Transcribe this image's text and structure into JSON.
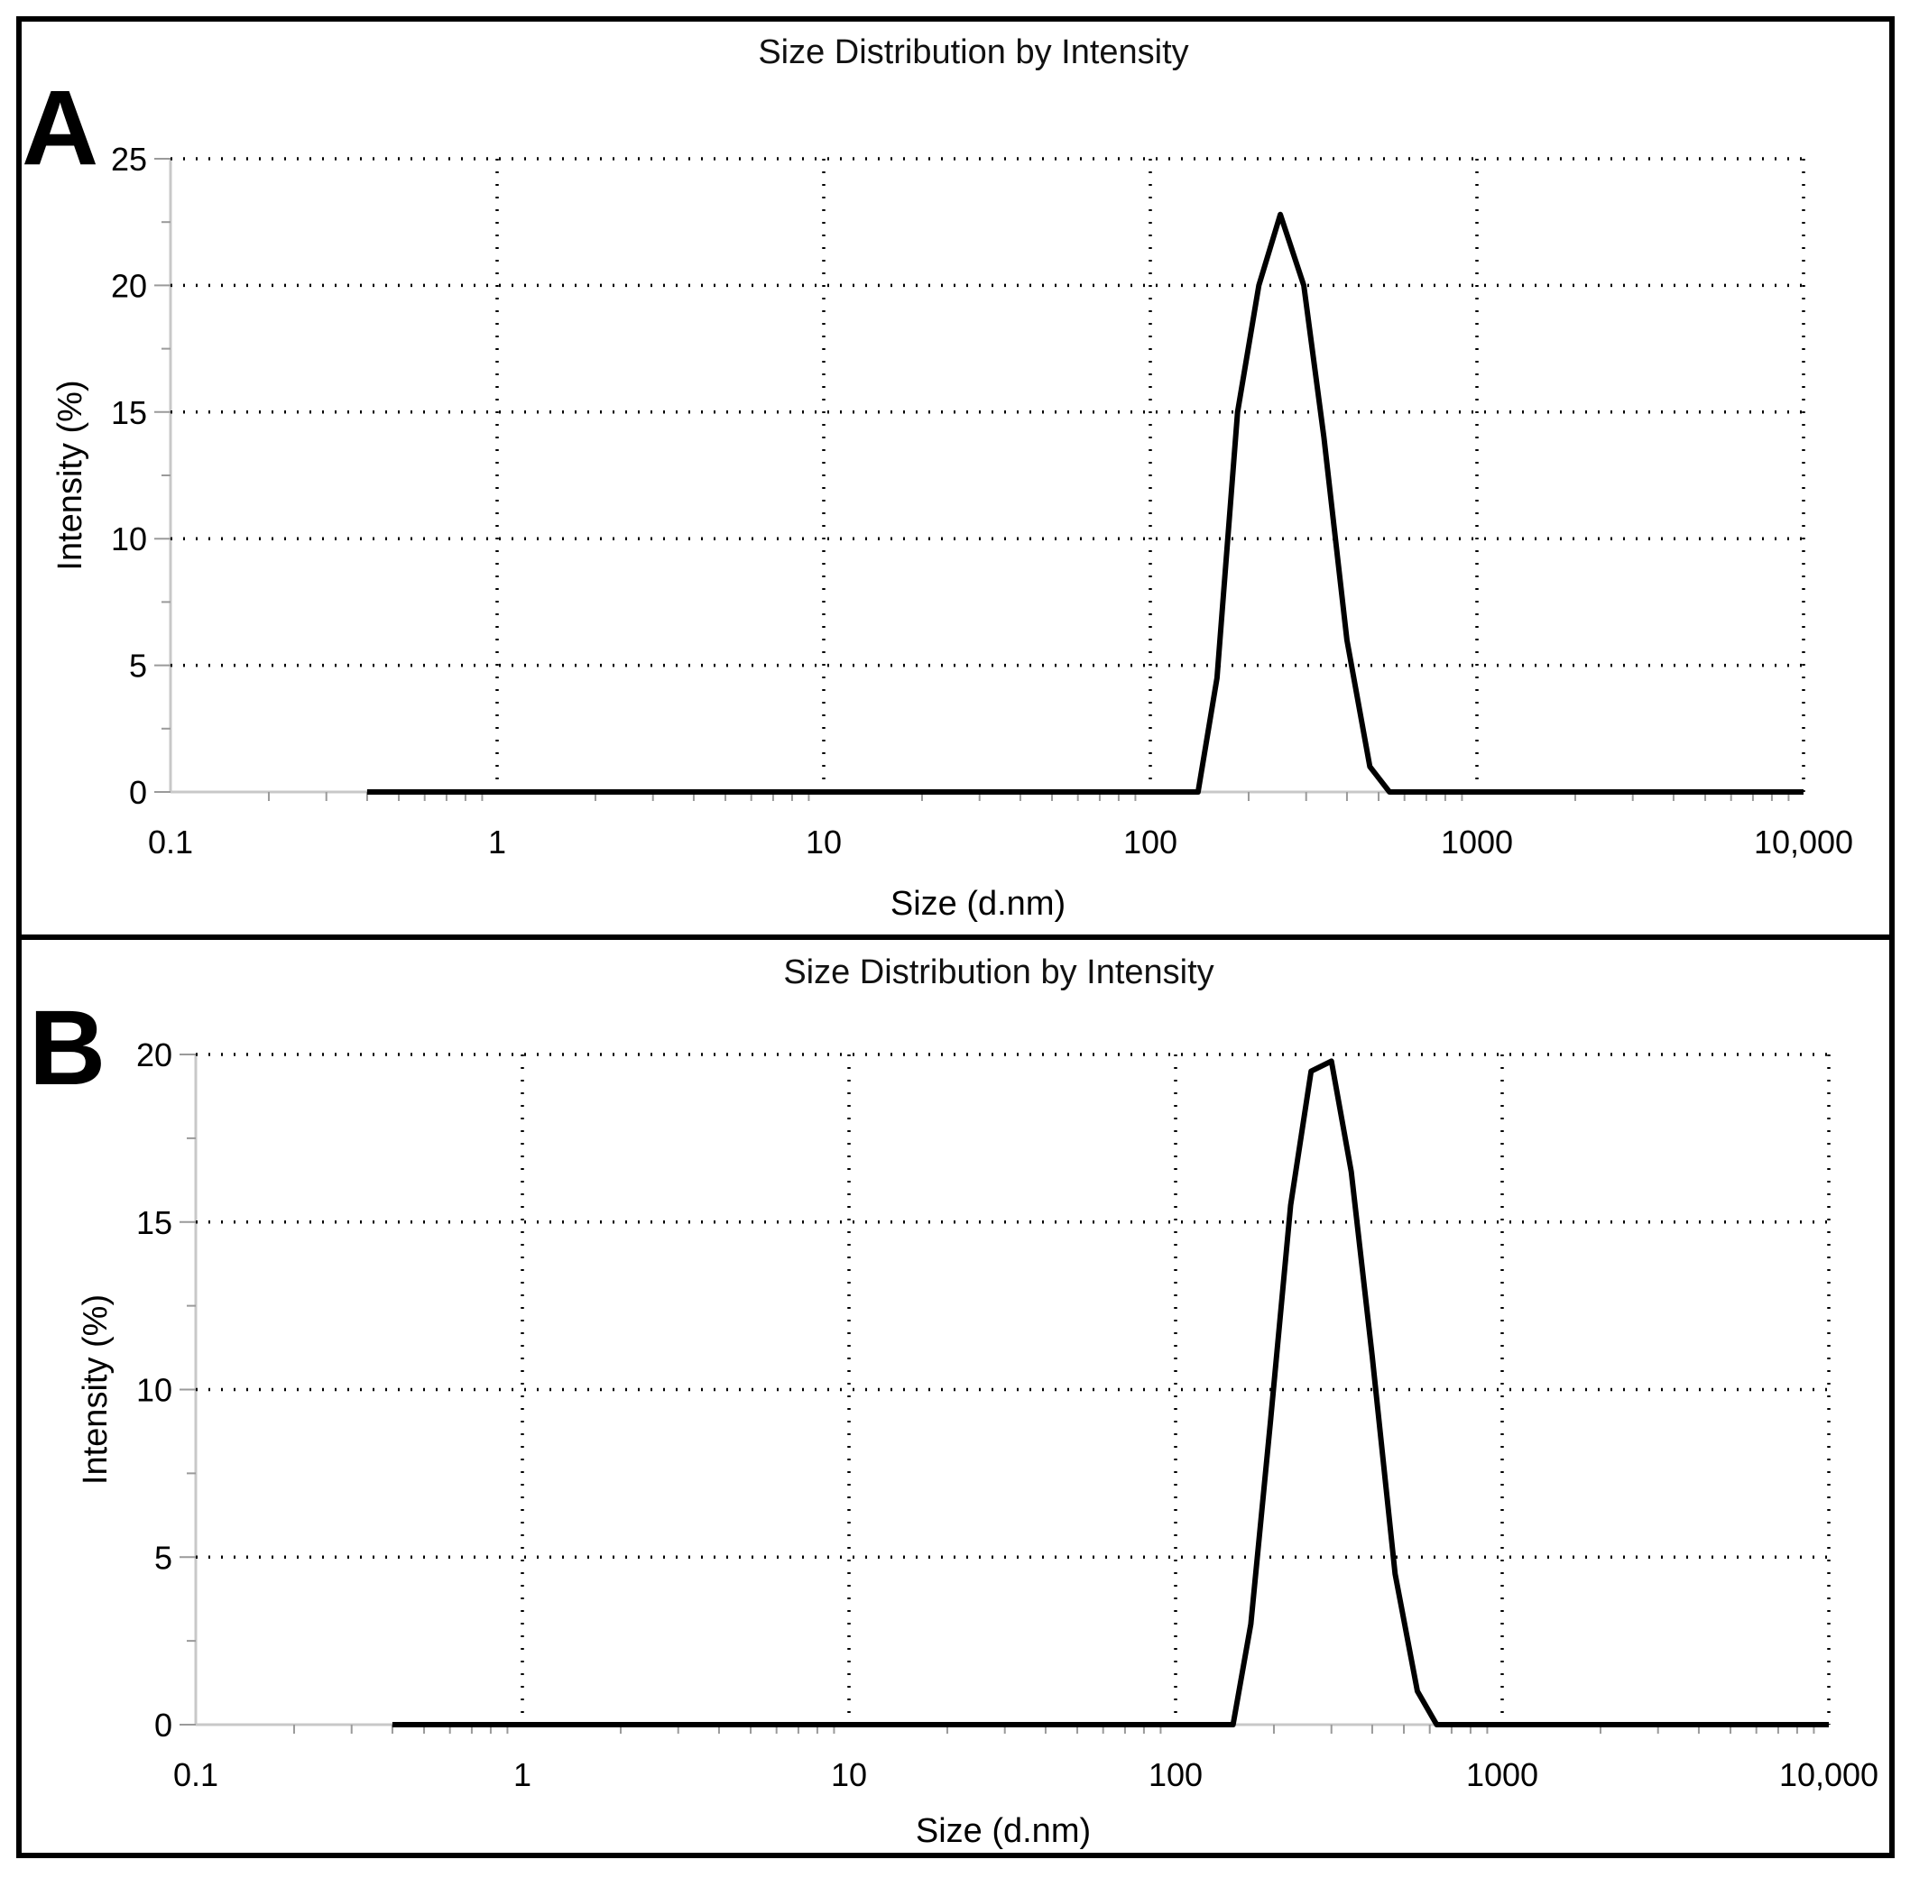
{
  "chart_data": [
    {
      "type": "line",
      "panel_label": "A",
      "title": "Size Distribution by Intensity",
      "xlabel": "Size (d.nm)",
      "ylabel": "Intensity (%)",
      "xscale": "log",
      "xlim": [
        0.1,
        10000
      ],
      "ylim": [
        0,
        25
      ],
      "xticks": [
        0.1,
        1,
        10,
        100,
        1000,
        10000
      ],
      "xtick_labels": [
        "0.1",
        "1",
        "10",
        "100",
        "1000",
        "10,000"
      ],
      "yticks": [
        0,
        5,
        10,
        15,
        20,
        25
      ],
      "ytick_labels": [
        "0",
        "5",
        "10",
        "15",
        "20",
        "25"
      ],
      "grid": true,
      "series": [
        {
          "name": "Intensity",
          "x": [
            0.4,
            140,
            160,
            185,
            215,
            250,
            295,
            340,
            400,
            470,
            540,
            10000
          ],
          "y": [
            0,
            0,
            4.5,
            15,
            20,
            22.8,
            20,
            14,
            6,
            1,
            0,
            0
          ]
        }
      ]
    },
    {
      "type": "line",
      "panel_label": "B",
      "title": "Size Distribution by Intensity",
      "xlabel": "Size (d.nm)",
      "ylabel": "Intensity (%)",
      "xscale": "log",
      "xlim": [
        0.1,
        10000
      ],
      "ylim": [
        0,
        20
      ],
      "xticks": [
        0.1,
        1,
        10,
        100,
        1000,
        10000
      ],
      "xtick_labels": [
        "0.1",
        "1",
        "10",
        "100",
        "1000",
        "10,000"
      ],
      "yticks": [
        0,
        5,
        10,
        15,
        20
      ],
      "ytick_labels": [
        "0",
        "5",
        "10",
        "15",
        "20"
      ],
      "grid": true,
      "series": [
        {
          "name": "Intensity",
          "x": [
            0.4,
            150,
            170,
            195,
            225,
            260,
            300,
            345,
            400,
            470,
            550,
            630,
            10000
          ],
          "y": [
            0,
            0,
            3,
            9,
            15.5,
            19.5,
            19.8,
            16.5,
            11,
            4.5,
            1,
            0,
            0
          ]
        }
      ]
    }
  ]
}
